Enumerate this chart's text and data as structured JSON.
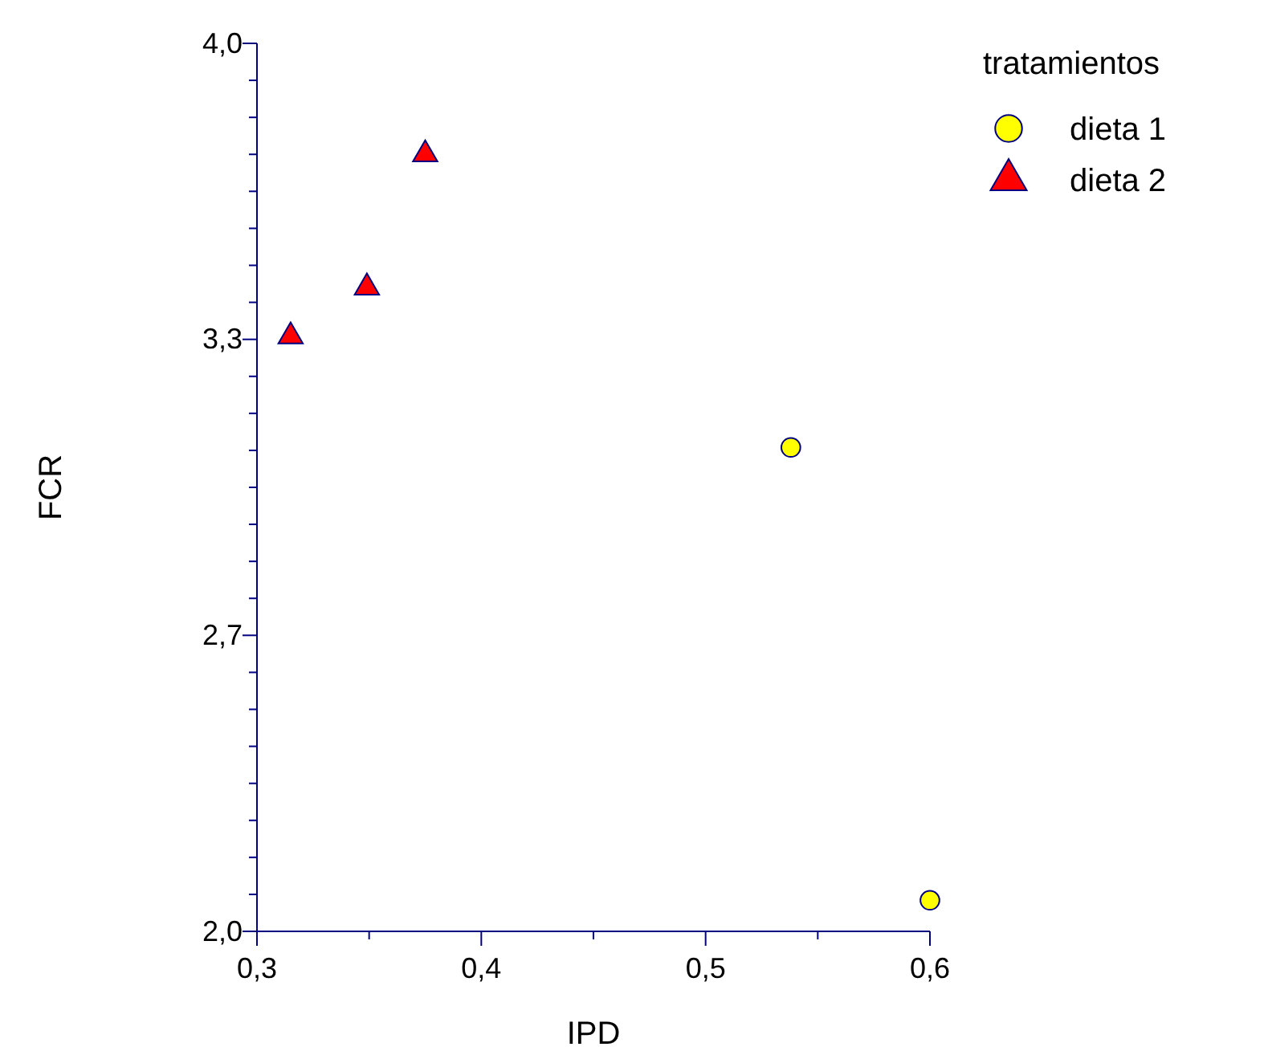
{
  "chart_data": {
    "type": "scatter",
    "xlabel": "IPD",
    "ylabel": "FCR",
    "legend_title": "tratamientos",
    "legend": "top right",
    "grid": false,
    "xlim": [
      0.3,
      0.6
    ],
    "xticks": [
      {
        "value": 0.3,
        "label": "0,3"
      },
      {
        "value": 0.35,
        "label": null
      },
      {
        "value": 0.4,
        "label": "0,4"
      },
      {
        "value": 0.45,
        "label": null
      },
      {
        "value": 0.5,
        "label": "0,5"
      },
      {
        "value": 0.55,
        "label": null
      },
      {
        "value": 0.6,
        "label": "0,6"
      }
    ],
    "ylim": [
      2.0,
      4.0
    ],
    "yticks": [
      {
        "value": 2.0,
        "label": "2,0"
      },
      {
        "value": 2.0833,
        "label": null
      },
      {
        "value": 2.1667,
        "label": null
      },
      {
        "value": 2.25,
        "label": null
      },
      {
        "value": 2.3333,
        "label": null
      },
      {
        "value": 2.4167,
        "label": null
      },
      {
        "value": 2.5,
        "label": null
      },
      {
        "value": 2.5833,
        "label": null
      },
      {
        "value": 2.6667,
        "label": "2,7"
      },
      {
        "value": 2.75,
        "label": null
      },
      {
        "value": 2.8333,
        "label": null
      },
      {
        "value": 2.9167,
        "label": null
      },
      {
        "value": 3.0,
        "label": null
      },
      {
        "value": 3.0833,
        "label": null
      },
      {
        "value": 3.1667,
        "label": null
      },
      {
        "value": 3.25,
        "label": null
      },
      {
        "value": 3.3333,
        "label": "3,3"
      },
      {
        "value": 3.4167,
        "label": null
      },
      {
        "value": 3.5,
        "label": null
      },
      {
        "value": 3.5833,
        "label": null
      },
      {
        "value": 3.6667,
        "label": null
      },
      {
        "value": 3.75,
        "label": null
      },
      {
        "value": 3.8333,
        "label": null
      },
      {
        "value": 3.9167,
        "label": null
      },
      {
        "value": 4.0,
        "label": "4,0"
      }
    ],
    "series": [
      {
        "name": "dieta 1",
        "color": "#ffff00",
        "marker": "circle",
        "x": [
          0.538,
          0.6
        ],
        "values": [
          3.09,
          2.07
        ]
      },
      {
        "name": "dieta 2",
        "color": "#ff0000",
        "marker": "triangle",
        "x": [
          0.315,
          0.349,
          0.375
        ],
        "values": [
          3.34,
          3.45,
          3.75
        ]
      }
    ]
  }
}
